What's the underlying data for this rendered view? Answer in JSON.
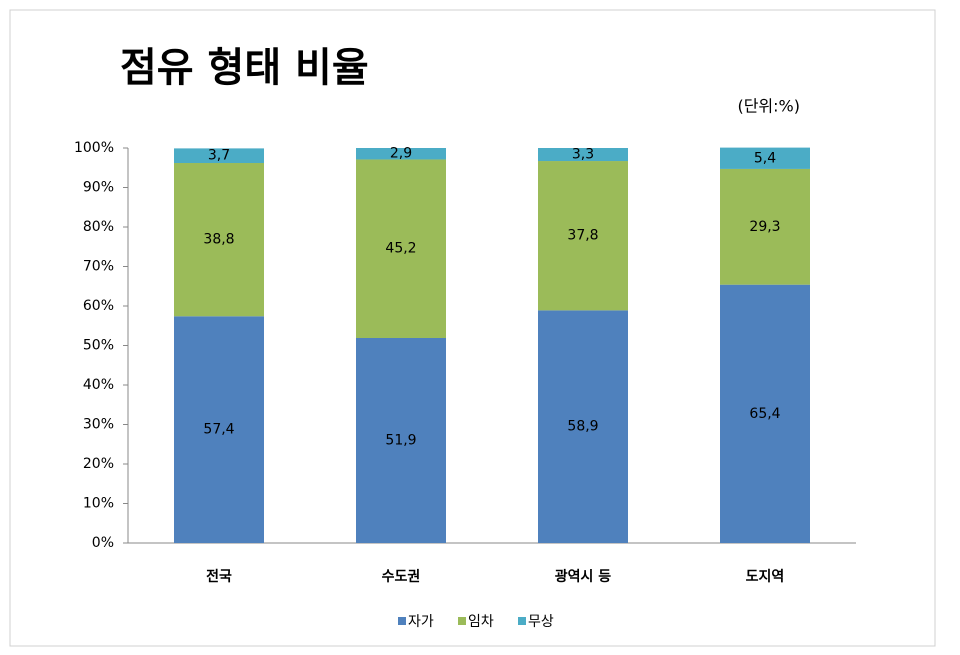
{
  "chart_data": {
    "type": "stacked_bar",
    "title": "점유 형태 비율",
    "unit_note": "(단위:%)",
    "categories": [
      "전국",
      "수도권",
      "광역시 등",
      "도지역"
    ],
    "series": [
      {
        "name": "자가",
        "color": "#4f81bd",
        "values": [
          57.4,
          51.9,
          58.9,
          65.4
        ],
        "value_labels": [
          "57,4",
          "51,9",
          "58,9",
          "65,4"
        ]
      },
      {
        "name": "임차",
        "color": "#9bbb59",
        "values": [
          38.8,
          45.2,
          37.8,
          29.3
        ],
        "value_labels": [
          "38,8",
          "45,2",
          "37,8",
          "29,3"
        ]
      },
      {
        "name": "무상",
        "color": "#4bacc6",
        "values": [
          3.7,
          2.9,
          3.3,
          5.4
        ],
        "value_labels": [
          "3,7",
          "2,9",
          "3,3",
          "5,4"
        ]
      }
    ],
    "ylim": [
      0,
      100
    ],
    "yticks": [
      {
        "value": 0,
        "label": "0%"
      },
      {
        "value": 10,
        "label": "10%"
      },
      {
        "value": 20,
        "label": "20%"
      },
      {
        "value": 30,
        "label": "30%"
      },
      {
        "value": 40,
        "label": "40%"
      },
      {
        "value": 50,
        "label": "50%"
      },
      {
        "value": 60,
        "label": "60%"
      },
      {
        "value": 70,
        "label": "70%"
      },
      {
        "value": 80,
        "label": "80%"
      },
      {
        "value": 90,
        "label": "90%"
      },
      {
        "value": 100,
        "label": "100%"
      }
    ],
    "grid": false,
    "legend": "bottom"
  }
}
